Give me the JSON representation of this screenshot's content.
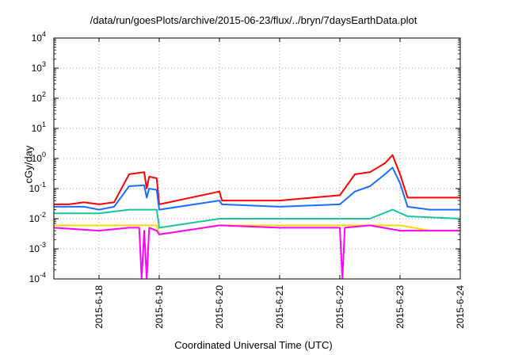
{
  "chart_data": {
    "type": "line",
    "title": "/data/run/goesPlots/archive/2015-06-23/flux/../bryn/7daysEarthData.plot",
    "xlabel": "Coordinated Universal Time (UTC)",
    "ylabel": "cGy/day",
    "x_ticks": [
      "2015-6-18",
      "2015-6-19",
      "2015-6-20",
      "2015-6-21",
      "2015-6-22",
      "2015-6-23",
      "2015-6-24"
    ],
    "xlim": [
      "2015-6-17T06:00",
      "2015-6-24T00:00"
    ],
    "y_scale": "log",
    "ylim": [
      0.0001,
      10000
    ],
    "y_ticks": [
      {
        "base": "10",
        "exp": "-4"
      },
      {
        "base": "10",
        "exp": "-3"
      },
      {
        "base": "10",
        "exp": "-2"
      },
      {
        "base": "10",
        "exp": "-1"
      },
      {
        "base": "10",
        "exp": "0"
      },
      {
        "base": "10",
        "exp": "1"
      },
      {
        "base": "10",
        "exp": "2"
      },
      {
        "base": "10",
        "exp": "3"
      },
      {
        "base": "10",
        "exp": "4"
      }
    ],
    "grid": true,
    "legend": "none",
    "series": [
      {
        "color": "#ff0000",
        "points": [
          [
            "2015-6-17T06:00",
            0.03
          ],
          [
            "2015-6-17T12:00",
            0.03
          ],
          [
            "2015-6-17T18:00",
            0.035
          ],
          [
            "2015-6-18T00:00",
            0.03
          ],
          [
            "2015-6-18T06:00",
            0.035
          ],
          [
            "2015-6-18T12:00",
            0.3
          ],
          [
            "2015-6-18T18:00",
            0.35
          ],
          [
            "2015-6-18T19:00",
            0.1
          ],
          [
            "2015-6-18T20:00",
            0.25
          ],
          [
            "2015-6-18T23:00",
            0.22
          ],
          [
            "2015-6-19T00:00",
            0.03
          ],
          [
            "2015-6-20T00:00",
            0.08
          ],
          [
            "2015-6-20T01:00",
            0.04
          ],
          [
            "2015-6-21T00:00",
            0.04
          ],
          [
            "2015-6-22T00:00",
            0.06
          ],
          [
            "2015-6-22T06:00",
            0.3
          ],
          [
            "2015-6-22T12:00",
            0.35
          ],
          [
            "2015-6-22T18:00",
            0.7
          ],
          [
            "2015-6-22T21:00",
            1.3
          ],
          [
            "2015-6-23T00:00",
            0.3
          ],
          [
            "2015-6-23T03:00",
            0.05
          ],
          [
            "2015-6-23T12:00",
            0.05
          ],
          [
            "2015-6-24T00:00",
            0.05
          ]
        ]
      },
      {
        "color": "#1a6eff",
        "points": [
          [
            "2015-6-17T06:00",
            0.025
          ],
          [
            "2015-6-17T12:00",
            0.025
          ],
          [
            "2015-6-17T18:00",
            0.025
          ],
          [
            "2015-6-18T00:00",
            0.02
          ],
          [
            "2015-6-18T06:00",
            0.025
          ],
          [
            "2015-6-18T12:00",
            0.12
          ],
          [
            "2015-6-18T18:00",
            0.13
          ],
          [
            "2015-6-18T19:00",
            0.05
          ],
          [
            "2015-6-18T20:00",
            0.1
          ],
          [
            "2015-6-18T23:00",
            0.09
          ],
          [
            "2015-6-19T00:00",
            0.02
          ],
          [
            "2015-6-20T00:00",
            0.04
          ],
          [
            "2015-6-20T01:00",
            0.03
          ],
          [
            "2015-6-21T00:00",
            0.025
          ],
          [
            "2015-6-22T00:00",
            0.03
          ],
          [
            "2015-6-22T06:00",
            0.08
          ],
          [
            "2015-6-22T12:00",
            0.12
          ],
          [
            "2015-6-22T18:00",
            0.3
          ],
          [
            "2015-6-22T21:00",
            0.5
          ],
          [
            "2015-6-23T00:00",
            0.15
          ],
          [
            "2015-6-23T03:00",
            0.025
          ],
          [
            "2015-6-23T12:00",
            0.02
          ],
          [
            "2015-6-24T00:00",
            0.02
          ]
        ]
      },
      {
        "color": "#1bc49b",
        "points": [
          [
            "2015-6-17T06:00",
            0.015
          ],
          [
            "2015-6-18T00:00",
            0.015
          ],
          [
            "2015-6-18T12:00",
            0.02
          ],
          [
            "2015-6-18T23:00",
            0.02
          ],
          [
            "2015-6-19T00:00",
            0.005
          ],
          [
            "2015-6-20T00:00",
            0.01
          ],
          [
            "2015-6-21T00:00",
            0.01
          ],
          [
            "2015-6-22T00:00",
            0.01
          ],
          [
            "2015-6-22T12:00",
            0.01
          ],
          [
            "2015-6-22T21:00",
            0.02
          ],
          [
            "2015-6-23T03:00",
            0.012
          ],
          [
            "2015-6-24T00:00",
            0.01
          ]
        ]
      },
      {
        "color": "#ffd800",
        "points": [
          [
            "2015-6-17T06:00",
            0.006
          ],
          [
            "2015-6-18T00:00",
            0.006
          ],
          [
            "2015-6-18T23:00",
            0.006
          ],
          [
            "2015-6-19T00:00",
            0.003
          ],
          [
            "2015-6-20T00:00",
            0.006
          ],
          [
            "2015-6-22T00:00",
            0.006
          ],
          [
            "2015-6-23T00:00",
            0.006
          ],
          [
            "2015-6-23T12:00",
            0.004
          ],
          [
            "2015-6-24T00:00",
            0.004
          ]
        ]
      },
      {
        "color": "#ff00ff",
        "points": [
          [
            "2015-6-17T06:00",
            0.005
          ],
          [
            "2015-6-18T00:00",
            0.004
          ],
          [
            "2015-6-18T12:00",
            0.005
          ],
          [
            "2015-6-18T16:00",
            0.005
          ],
          [
            "2015-6-18T17:00",
            0.0001
          ],
          [
            "2015-6-18T18:00",
            0.004
          ],
          [
            "2015-6-18T19:00",
            0.0001
          ],
          [
            "2015-6-18T20:00",
            0.005
          ],
          [
            "2015-6-18T23:00",
            0.004
          ],
          [
            "2015-6-19T00:00",
            0.003
          ],
          [
            "2015-6-20T00:00",
            0.006
          ],
          [
            "2015-6-21T00:00",
            0.005
          ],
          [
            "2015-6-22T00:00",
            0.005
          ],
          [
            "2015-6-22T01:00",
            0.0001
          ],
          [
            "2015-6-22T02:00",
            0.005
          ],
          [
            "2015-6-22T12:00",
            0.006
          ],
          [
            "2015-6-23T00:00",
            0.004
          ],
          [
            "2015-6-24T00:00",
            0.004
          ]
        ]
      }
    ]
  }
}
